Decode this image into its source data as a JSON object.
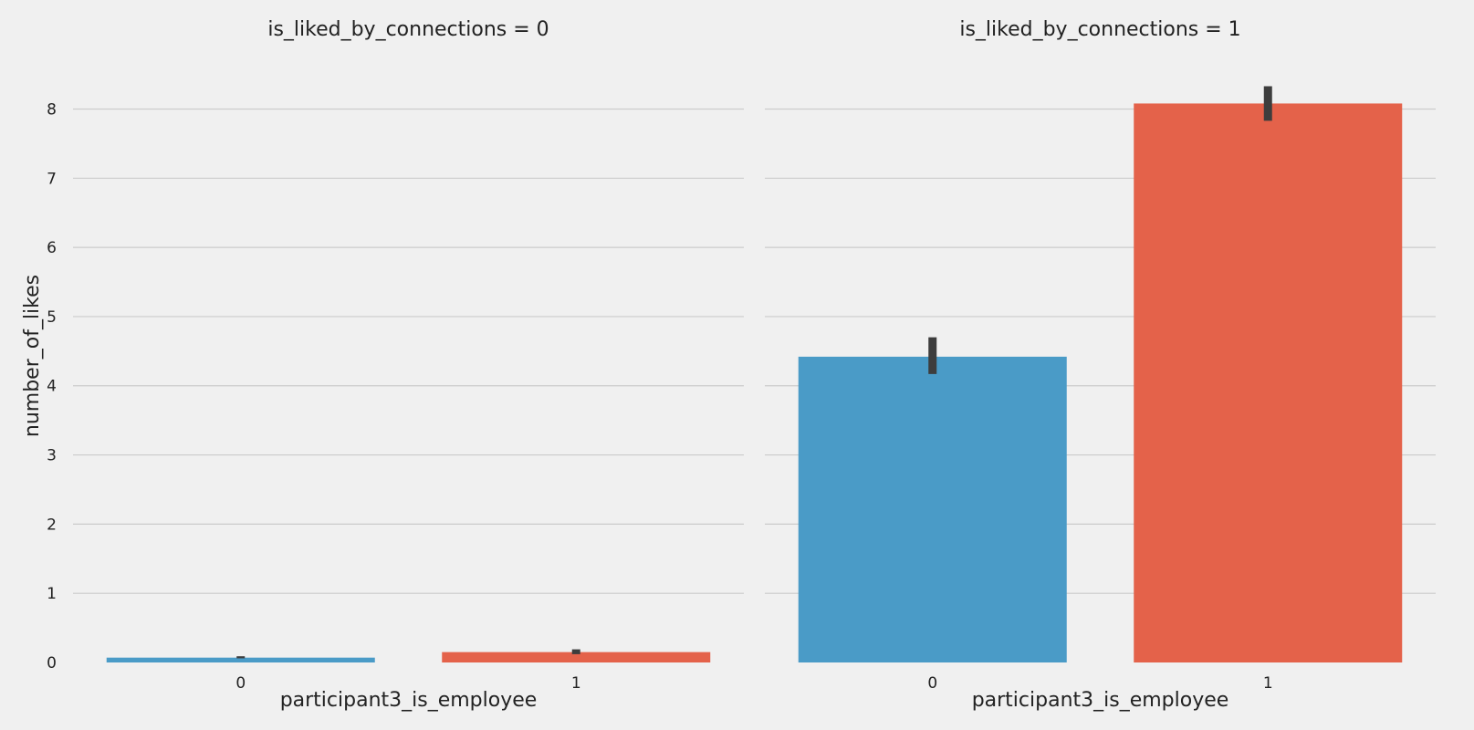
{
  "chart_data": {
    "type": "bar",
    "ylabel": "number_of_likes",
    "xlabel": "participant3_is_employee",
    "ylim": [
      0,
      8.6
    ],
    "yticks": [
      0,
      1,
      2,
      3,
      4,
      5,
      6,
      7,
      8
    ],
    "grid": true,
    "colors": [
      "#4a9bc7",
      "#e4624a"
    ],
    "facets": [
      {
        "title": "is_liked_by_connections = 0",
        "categories": [
          "0",
          "1"
        ],
        "values": [
          0.07,
          0.15
        ],
        "error_low": [
          0.06,
          0.12
        ],
        "error_high": [
          0.09,
          0.19
        ]
      },
      {
        "title": "is_liked_by_connections = 1",
        "categories": [
          "0",
          "1"
        ],
        "values": [
          4.42,
          8.08
        ],
        "error_low": [
          4.17,
          7.83
        ],
        "error_high": [
          4.7,
          8.33
        ]
      }
    ]
  }
}
